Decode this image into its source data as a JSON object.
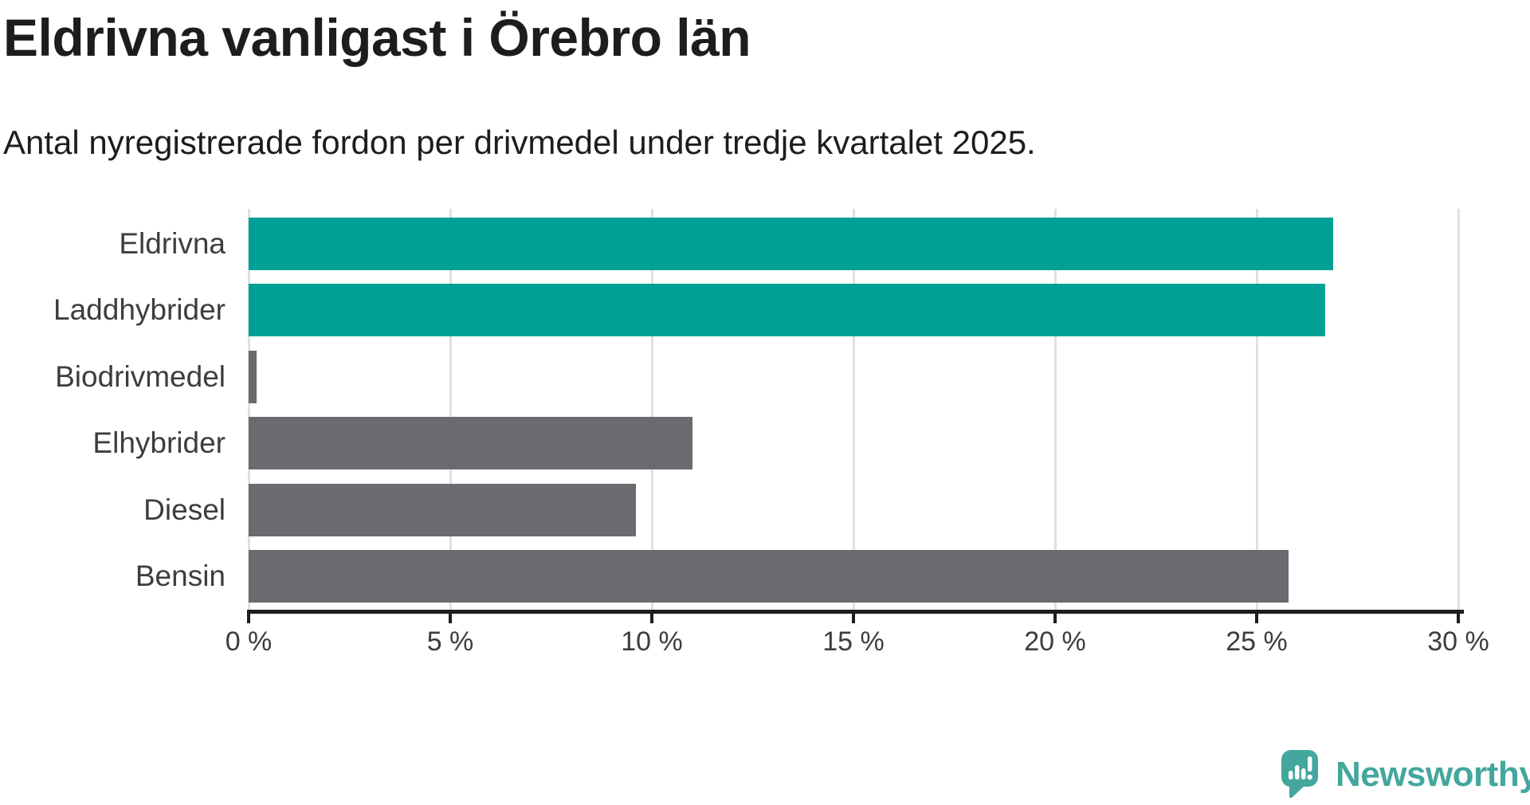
{
  "chart_data": {
    "type": "bar",
    "orientation": "horizontal",
    "title": "Eldrivna vanligast i Örebro län",
    "subtitle": "Antal nyregistrerade fordon per drivmedel under tredje kvartalet 2025.",
    "categories": [
      "Eldrivna",
      "Laddhybrider",
      "Biodrivmedel",
      "Elhybrider",
      "Diesel",
      "Bensin"
    ],
    "values": [
      26.9,
      26.7,
      0.2,
      11.0,
      9.6,
      25.8
    ],
    "unit": "%",
    "xlabel": "",
    "ylabel": "",
    "xlim": [
      0,
      30
    ],
    "x_tick_values": [
      0,
      5,
      10,
      15,
      20,
      25,
      30
    ],
    "x_tick_labels": [
      "0 %",
      "5 %",
      "10 %",
      "15 %",
      "20 %",
      "25 %",
      "30 %"
    ],
    "grid": "vertical",
    "legend": "none",
    "bar_colors": [
      "#00a096",
      "#00a096",
      "#6a6a70",
      "#6a6a70",
      "#6a6a70",
      "#6a6a70"
    ],
    "highlight_color": "#00a096",
    "default_color": "#6a6a70"
  },
  "colors": {
    "background": "#ffffff",
    "title_text": "#1d1d1b",
    "label_text": "#3d3d3d",
    "gridline": "#e0e0e0",
    "axis": "#1d1d1b",
    "brand": "#43a79d"
  },
  "branding": {
    "logo_text": "Newsworthy"
  }
}
